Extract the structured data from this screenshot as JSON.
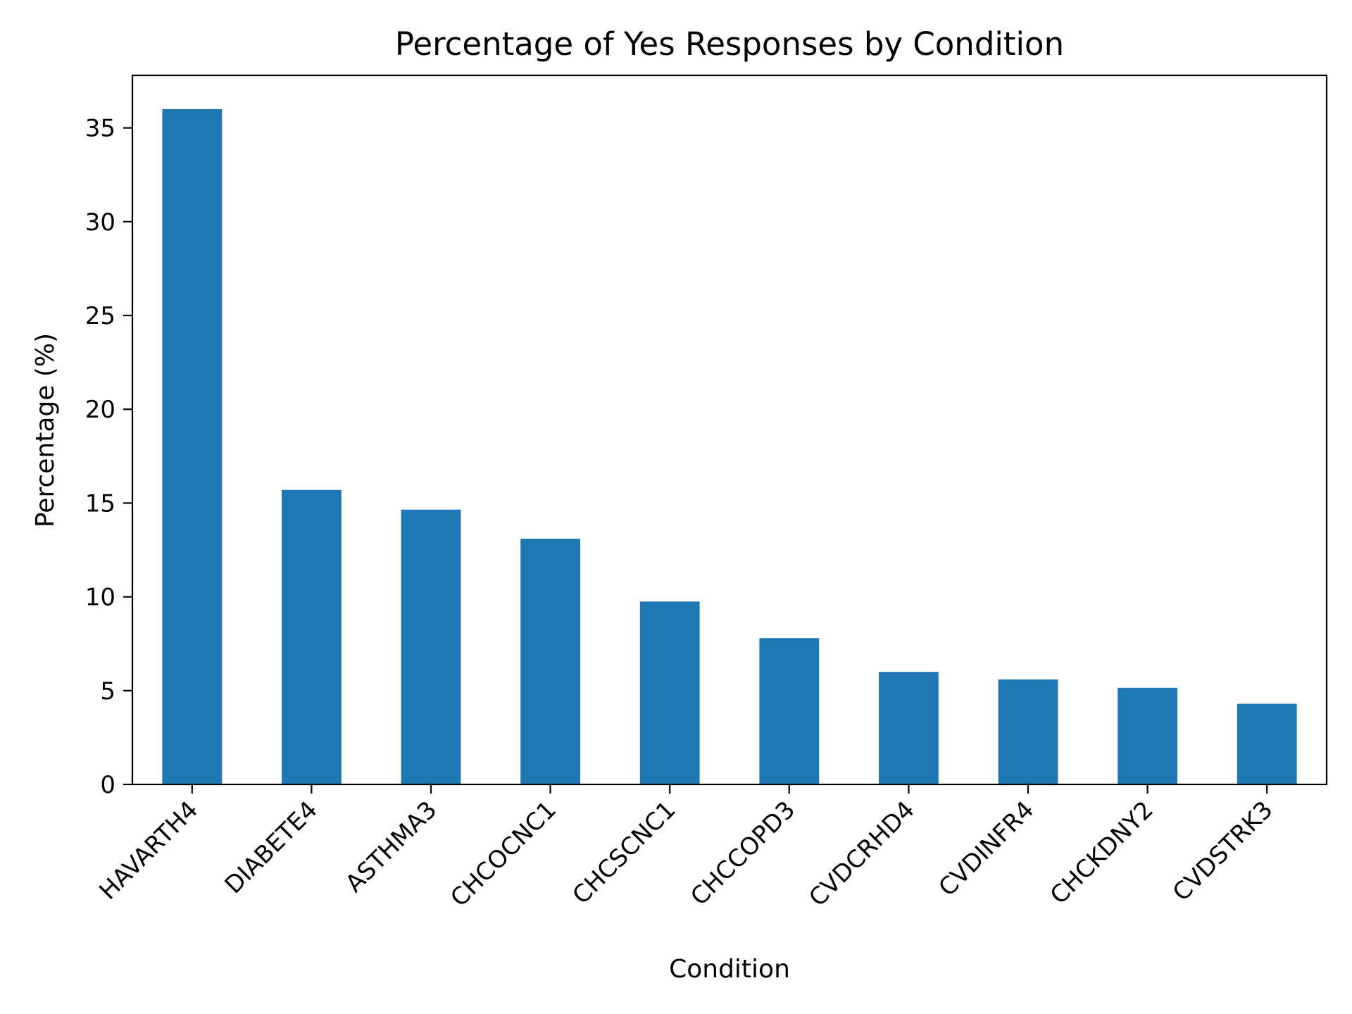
{
  "chart_data": {
    "type": "bar",
    "title": "Percentage of Yes Responses by Condition",
    "xlabel": "Condition",
    "ylabel": "Percentage (%)",
    "categories": [
      "HAVARTH4",
      "DIABETE4",
      "ASTHMA3",
      "CHCOCNC1",
      "CHCSCNC1",
      "CHCCOPD3",
      "CVDCRHD4",
      "CVDINFR4",
      "CHCKDNY2",
      "CVDSTRK3"
    ],
    "values": [
      36.0,
      15.7,
      14.65,
      13.1,
      9.75,
      7.8,
      6.0,
      5.6,
      5.15,
      4.3
    ],
    "ylim": [
      0,
      37.8
    ],
    "yticks": [
      0,
      5,
      10,
      15,
      20,
      25,
      30,
      35
    ],
    "grid": false,
    "bar_color": "#1f77b4"
  }
}
